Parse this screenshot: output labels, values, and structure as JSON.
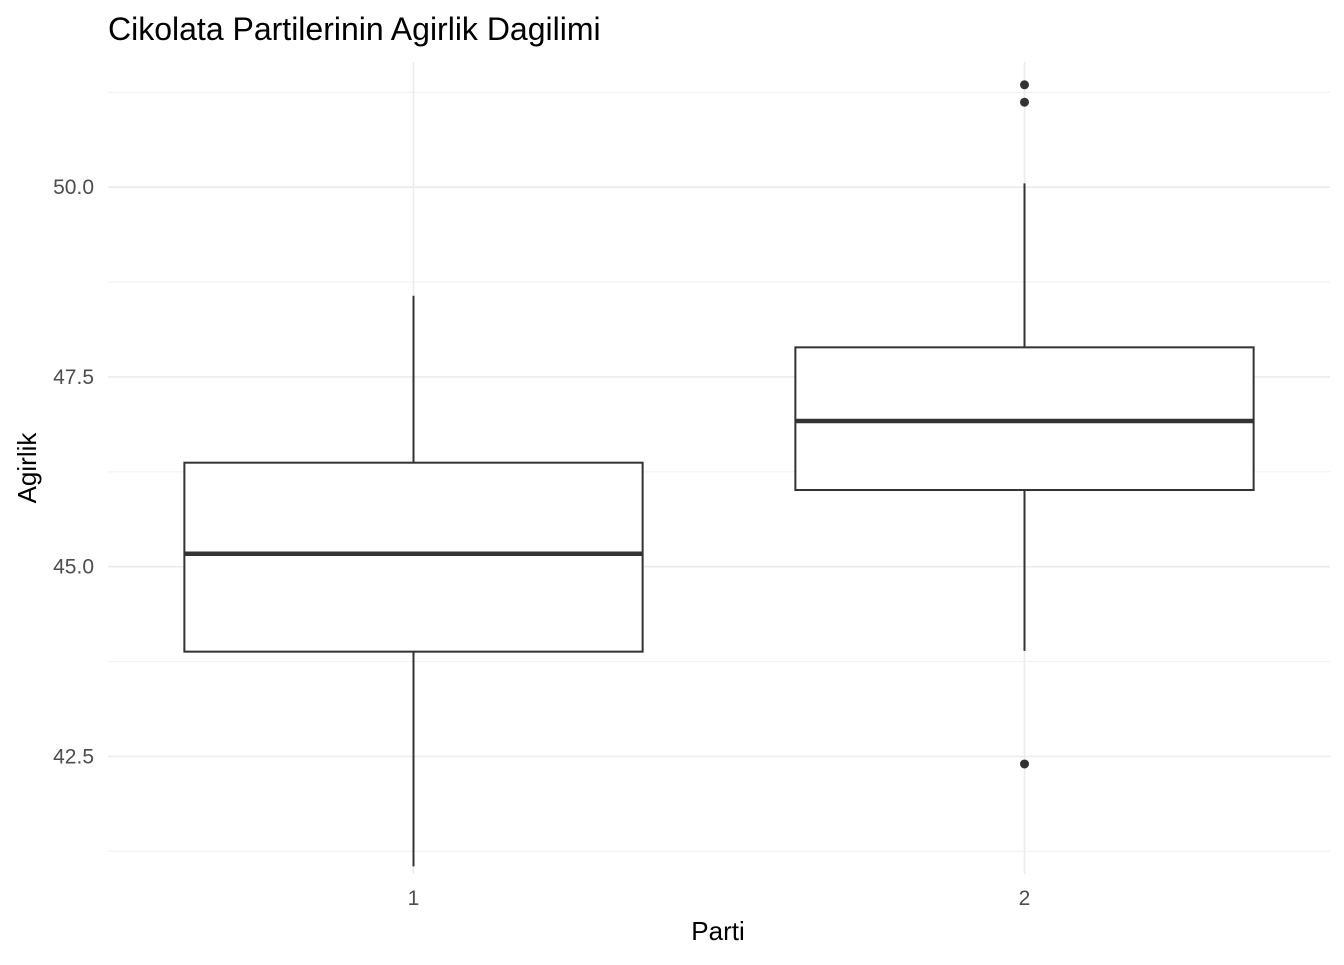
{
  "chart_data": {
    "type": "boxplot",
    "title": "Cikolata Partilerinin Agirlik Dagilimi",
    "xlabel": "Parti",
    "ylabel": "Agirlik",
    "categories": [
      "1",
      "2"
    ],
    "ylim": [
      40.95,
      51.65
    ],
    "yticks": [
      42.5,
      45.0,
      47.5,
      50.0
    ],
    "ytick_labels": [
      "42.5",
      "45.0",
      "47.5",
      "50.0"
    ],
    "grid": true,
    "boxes": [
      {
        "category": "1",
        "whisker_low": 41.05,
        "q1": 43.88,
        "median": 45.17,
        "q3": 46.37,
        "whisker_high": 48.57,
        "outliers": []
      },
      {
        "category": "2",
        "whisker_low": 43.89,
        "q1": 46.01,
        "median": 46.92,
        "q3": 47.89,
        "whisker_high": 50.05,
        "outliers": [
          42.4,
          51.12,
          51.35
        ]
      }
    ],
    "colors": {
      "box_fill": "#ffffff",
      "box_line": "#333333",
      "grid_major": "#ebebeb",
      "grid_minor": "#f2f2f2",
      "tick_text": "#4d4d4d",
      "title_text": "#000000"
    }
  }
}
